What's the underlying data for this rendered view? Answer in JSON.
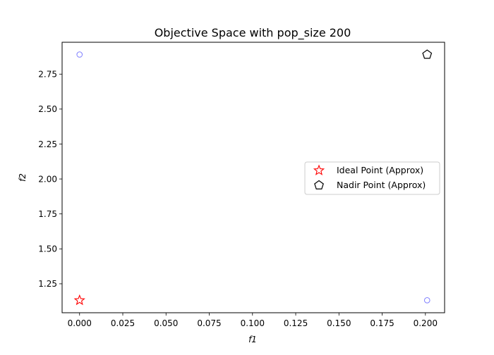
{
  "chart_data": {
    "type": "scatter",
    "title": "Objective Space with pop_size 200",
    "xlabel": "f1",
    "ylabel": "f2",
    "xlim": [
      -0.0101,
      0.2111
    ],
    "ylim": [
      1.043,
      2.978
    ],
    "xticks": [
      "0.000",
      "0.025",
      "0.050",
      "0.075",
      "0.100",
      "0.125",
      "0.150",
      "0.175",
      "0.200"
    ],
    "yticks": [
      "1.25",
      "1.50",
      "1.75",
      "2.00",
      "2.25",
      "2.50",
      "2.75"
    ],
    "grid": false,
    "legend_position": "center-right",
    "series": [
      {
        "marker": "circle-open",
        "color": "#8080ff",
        "points": [
          {
            "x": 0.0,
            "y": 2.89
          },
          {
            "x": 0.201,
            "y": 1.132
          }
        ]
      },
      {
        "name": "Ideal Point (Approx)",
        "marker": "star-open",
        "color": "#ff0000",
        "points": [
          {
            "x": 0.0,
            "y": 1.132
          }
        ]
      },
      {
        "name": "Nadir Point (Approx)",
        "marker": "pentagon-open",
        "color": "#000000",
        "points": [
          {
            "x": 0.201,
            "y": 2.89
          }
        ]
      }
    ]
  }
}
